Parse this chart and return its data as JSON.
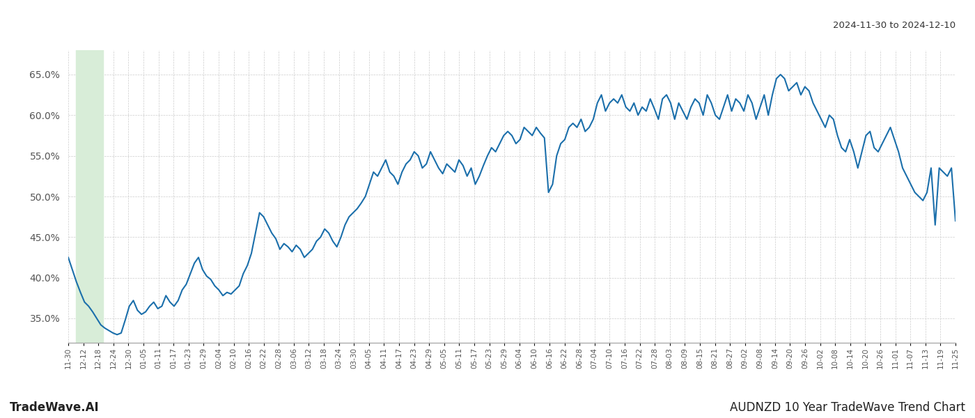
{
  "title_top_right": "2024-11-30 to 2024-12-10",
  "title_bottom_left": "TradeWave.AI",
  "title_bottom_right": "AUDNZD 10 Year TradeWave Trend Chart",
  "line_color": "#1B6FAB",
  "line_width": 1.5,
  "background_color": "#ffffff",
  "grid_color": "#cccccc",
  "highlight_color": "#d8edd8",
  "y_min": 32.0,
  "y_max": 68.0,
  "y_ticks": [
    35.0,
    40.0,
    45.0,
    50.0,
    55.0,
    60.0,
    65.0
  ],
  "x_tick_labels": [
    "11-30",
    "12-12",
    "12-18",
    "12-24",
    "12-30",
    "01-05",
    "01-11",
    "01-17",
    "01-23",
    "01-29",
    "02-04",
    "02-10",
    "02-16",
    "02-22",
    "02-28",
    "03-06",
    "03-12",
    "03-18",
    "03-24",
    "03-30",
    "04-05",
    "04-11",
    "04-17",
    "04-23",
    "04-29",
    "05-05",
    "05-11",
    "05-17",
    "05-23",
    "05-29",
    "06-04",
    "06-10",
    "06-16",
    "06-22",
    "06-28",
    "07-04",
    "07-10",
    "07-16",
    "07-22",
    "07-28",
    "08-03",
    "08-09",
    "08-15",
    "08-21",
    "08-27",
    "09-02",
    "09-08",
    "09-14",
    "09-20",
    "09-26",
    "10-02",
    "10-08",
    "10-14",
    "10-20",
    "10-26",
    "11-01",
    "11-07",
    "11-13",
    "11-19",
    "11-25"
  ],
  "highlight_x_start_label": "12-06",
  "highlight_x_end_label": "12-18",
  "values": [
    42.5,
    41.0,
    39.5,
    38.2,
    37.0,
    36.5,
    35.8,
    35.0,
    34.2,
    33.8,
    33.5,
    33.2,
    33.0,
    33.2,
    34.8,
    36.5,
    37.2,
    36.0,
    35.5,
    35.8,
    36.5,
    37.0,
    36.2,
    36.5,
    37.8,
    37.0,
    36.5,
    37.2,
    38.5,
    39.2,
    40.5,
    41.8,
    42.5,
    41.0,
    40.2,
    39.8,
    39.0,
    38.5,
    37.8,
    38.2,
    38.0,
    38.5,
    39.0,
    40.5,
    41.5,
    43.0,
    45.5,
    48.0,
    47.5,
    46.5,
    45.5,
    44.8,
    43.5,
    44.2,
    43.8,
    43.2,
    44.0,
    43.5,
    42.5,
    43.0,
    43.5,
    44.5,
    45.0,
    46.0,
    45.5,
    44.5,
    43.8,
    45.0,
    46.5,
    47.5,
    48.0,
    48.5,
    49.2,
    50.0,
    51.5,
    53.0,
    52.5,
    53.5,
    54.5,
    53.0,
    52.5,
    51.5,
    53.0,
    54.0,
    54.5,
    55.5,
    55.0,
    53.5,
    54.0,
    55.5,
    54.5,
    53.5,
    52.8,
    54.0,
    53.5,
    53.0,
    54.5,
    53.8,
    52.5,
    53.5,
    51.5,
    52.5,
    53.8,
    55.0,
    56.0,
    55.5,
    56.5,
    57.5,
    58.0,
    57.5,
    56.5,
    57.0,
    58.5,
    58.0,
    57.5,
    58.5,
    57.8,
    57.2,
    50.5,
    51.5,
    55.0,
    56.5,
    57.0,
    58.5,
    59.0,
    58.5,
    59.5,
    58.0,
    58.5,
    59.5,
    61.5,
    62.5,
    60.5,
    61.5,
    62.0,
    61.5,
    62.5,
    61.0,
    60.5,
    61.5,
    60.0,
    61.0,
    60.5,
    62.0,
    60.8,
    59.5,
    62.0,
    62.5,
    61.5,
    59.5,
    61.5,
    60.5,
    59.5,
    61.0,
    62.0,
    61.5,
    60.0,
    62.5,
    61.5,
    60.0,
    59.5,
    61.0,
    62.5,
    60.5,
    62.0,
    61.5,
    60.5,
    62.5,
    61.5,
    59.5,
    61.0,
    62.5,
    60.0,
    62.5,
    64.5,
    65.0,
    64.5,
    63.0,
    63.5,
    64.0,
    62.5,
    63.5,
    63.0,
    61.5,
    60.5,
    59.5,
    58.5,
    60.0,
    59.5,
    57.5,
    56.0,
    55.5,
    57.0,
    55.5,
    53.5,
    55.5,
    57.5,
    58.0,
    56.0,
    55.5,
    56.5,
    57.5,
    58.5,
    57.0,
    55.5,
    53.5,
    52.5,
    51.5,
    50.5,
    50.0,
    49.5,
    50.5,
    53.5,
    46.5,
    53.5,
    53.0,
    52.5,
    53.5,
    47.0
  ]
}
